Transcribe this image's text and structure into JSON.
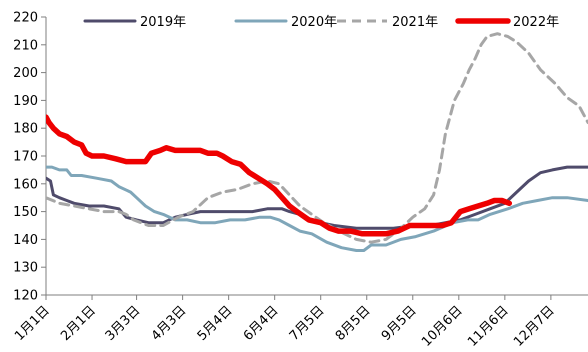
{
  "chart_data": {
    "type": "line",
    "title": "",
    "xlabel": "",
    "ylabel": "",
    "ylim": [
      120,
      220
    ],
    "yticks": [
      120,
      130,
      140,
      150,
      160,
      170,
      180,
      190,
      200,
      210,
      220
    ],
    "x_ticks": [
      "1月1日",
      "2月1日",
      "3月3日",
      "4月3日",
      "5月4日",
      "6月4日",
      "7月5日",
      "8月5日",
      "9月5日",
      "10月6日",
      "11月6日",
      "12月7日"
    ],
    "x_tick_days": [
      1,
      32,
      62,
      93,
      124,
      155,
      186,
      217,
      248,
      279,
      310,
      341
    ],
    "xlim": [
      1,
      366
    ],
    "grid": false,
    "legend_position": "top",
    "series": [
      {
        "name": "2019年",
        "color": "#4f4b6b",
        "dash": "solid",
        "points": [
          [
            1,
            162
          ],
          [
            4,
            161
          ],
          [
            6,
            156
          ],
          [
            10,
            155
          ],
          [
            15,
            154
          ],
          [
            20,
            153
          ],
          [
            30,
            152
          ],
          [
            40,
            152
          ],
          [
            50,
            151
          ],
          [
            55,
            148
          ],
          [
            62,
            147
          ],
          [
            70,
            146
          ],
          [
            80,
            146
          ],
          [
            88,
            148
          ],
          [
            96,
            149
          ],
          [
            105,
            150
          ],
          [
            120,
            150
          ],
          [
            140,
            150
          ],
          [
            150,
            151
          ],
          [
            160,
            151
          ],
          [
            165,
            150
          ],
          [
            172,
            149
          ],
          [
            180,
            147
          ],
          [
            186,
            146
          ],
          [
            195,
            145
          ],
          [
            210,
            144
          ],
          [
            225,
            144
          ],
          [
            235,
            144
          ],
          [
            250,
            145
          ],
          [
            260,
            145
          ],
          [
            270,
            146
          ],
          [
            280,
            147
          ],
          [
            290,
            149
          ],
          [
            300,
            151
          ],
          [
            310,
            153
          ],
          [
            318,
            157
          ],
          [
            326,
            161
          ],
          [
            334,
            164
          ],
          [
            342,
            165
          ],
          [
            352,
            166
          ],
          [
            366,
            166
          ]
        ]
      },
      {
        "name": "2020年",
        "color": "#7fa6b9",
        "dash": "solid",
        "points": [
          [
            1,
            166
          ],
          [
            5,
            166
          ],
          [
            10,
            165
          ],
          [
            15,
            165
          ],
          [
            18,
            163
          ],
          [
            25,
            163
          ],
          [
            35,
            162
          ],
          [
            45,
            161
          ],
          [
            50,
            159
          ],
          [
            58,
            157
          ],
          [
            62,
            155
          ],
          [
            68,
            152
          ],
          [
            74,
            150
          ],
          [
            80,
            149
          ],
          [
            88,
            147
          ],
          [
            96,
            147
          ],
          [
            105,
            146
          ],
          [
            115,
            146
          ],
          [
            125,
            147
          ],
          [
            135,
            147
          ],
          [
            145,
            148
          ],
          [
            152,
            148
          ],
          [
            158,
            147
          ],
          [
            165,
            145
          ],
          [
            172,
            143
          ],
          [
            180,
            142
          ],
          [
            190,
            139
          ],
          [
            200,
            137
          ],
          [
            210,
            136
          ],
          [
            215,
            136
          ],
          [
            220,
            138
          ],
          [
            230,
            138
          ],
          [
            240,
            140
          ],
          [
            250,
            141
          ],
          [
            262,
            143
          ],
          [
            275,
            146
          ],
          [
            285,
            147
          ],
          [
            292,
            147
          ],
          [
            300,
            149
          ],
          [
            312,
            151
          ],
          [
            322,
            153
          ],
          [
            332,
            154
          ],
          [
            342,
            155
          ],
          [
            352,
            155
          ],
          [
            366,
            154
          ]
        ]
      },
      {
        "name": "2021年",
        "color": "#a6a6a6",
        "dash": "dashed",
        "points": [
          [
            1,
            155
          ],
          [
            10,
            153
          ],
          [
            20,
            152
          ],
          [
            30,
            151
          ],
          [
            40,
            150
          ],
          [
            50,
            150
          ],
          [
            55,
            149
          ],
          [
            60,
            147
          ],
          [
            70,
            145
          ],
          [
            80,
            145
          ],
          [
            90,
            148
          ],
          [
            100,
            150
          ],
          [
            110,
            155
          ],
          [
            120,
            157
          ],
          [
            130,
            158
          ],
          [
            140,
            160
          ],
          [
            150,
            161
          ],
          [
            158,
            160
          ],
          [
            165,
            156
          ],
          [
            172,
            152
          ],
          [
            180,
            149
          ],
          [
            188,
            146
          ],
          [
            195,
            144
          ],
          [
            202,
            142
          ],
          [
            210,
            140
          ],
          [
            220,
            139
          ],
          [
            230,
            140
          ],
          [
            240,
            144
          ],
          [
            248,
            148
          ],
          [
            256,
            151
          ],
          [
            262,
            156
          ],
          [
            266,
            165
          ],
          [
            270,
            178
          ],
          [
            276,
            190
          ],
          [
            282,
            196
          ],
          [
            286,
            201
          ],
          [
            290,
            205
          ],
          [
            294,
            210
          ],
          [
            298,
            213
          ],
          [
            305,
            214
          ],
          [
            312,
            213
          ],
          [
            318,
            211
          ],
          [
            326,
            207
          ],
          [
            334,
            201
          ],
          [
            344,
            196
          ],
          [
            352,
            191
          ],
          [
            360,
            188
          ],
          [
            366,
            182
          ]
        ]
      },
      {
        "name": "2022年",
        "color": "#ee0000",
        "dash": "solid",
        "points": [
          [
            1,
            184
          ],
          [
            3,
            182
          ],
          [
            6,
            180
          ],
          [
            10,
            178
          ],
          [
            15,
            177
          ],
          [
            20,
            175
          ],
          [
            25,
            174
          ],
          [
            28,
            171
          ],
          [
            32,
            170
          ],
          [
            40,
            170
          ],
          [
            48,
            169
          ],
          [
            55,
            168
          ],
          [
            62,
            168
          ],
          [
            68,
            168
          ],
          [
            72,
            171
          ],
          [
            78,
            172
          ],
          [
            82,
            173
          ],
          [
            88,
            172
          ],
          [
            93,
            172
          ],
          [
            100,
            172
          ],
          [
            105,
            172
          ],
          [
            110,
            171
          ],
          [
            116,
            171
          ],
          [
            120,
            170
          ],
          [
            126,
            168
          ],
          [
            132,
            167
          ],
          [
            138,
            164
          ],
          [
            144,
            162
          ],
          [
            150,
            160
          ],
          [
            155,
            158
          ],
          [
            160,
            155
          ],
          [
            165,
            152
          ],
          [
            170,
            150
          ],
          [
            178,
            147
          ],
          [
            186,
            146
          ],
          [
            192,
            144
          ],
          [
            198,
            143
          ],
          [
            206,
            143
          ],
          [
            214,
            142
          ],
          [
            222,
            142
          ],
          [
            230,
            142
          ],
          [
            238,
            143
          ],
          [
            246,
            145
          ],
          [
            254,
            145
          ],
          [
            260,
            145
          ],
          [
            268,
            145
          ],
          [
            274,
            146
          ],
          [
            280,
            150
          ],
          [
            286,
            151
          ],
          [
            292,
            152
          ],
          [
            298,
            153
          ],
          [
            303,
            154
          ],
          [
            308,
            154
          ],
          [
            313,
            153
          ]
        ]
      }
    ]
  }
}
